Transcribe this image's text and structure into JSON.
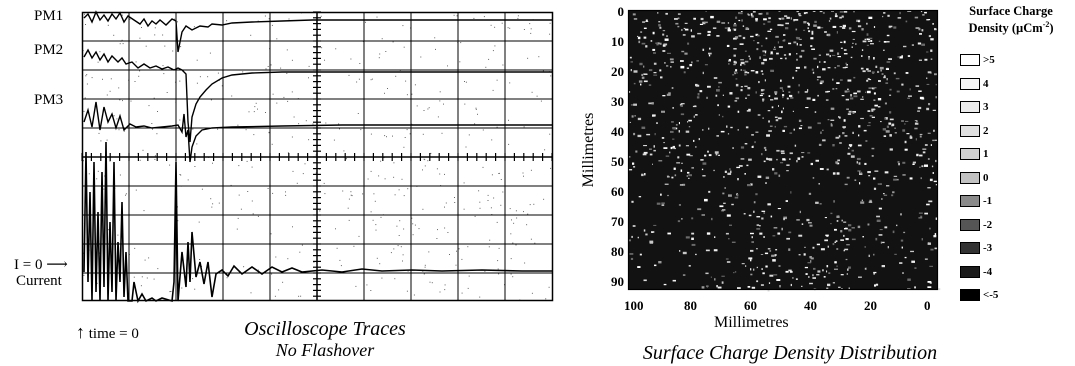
{
  "oscilloscope": {
    "trace_labels": [
      "PM1",
      "PM2",
      "PM3"
    ],
    "zero_marker": "I = 0",
    "current_label": "Current",
    "time_marker": "time = 0",
    "caption_line1": "Oscilloscope Traces",
    "caption_line2": "No Flashover"
  },
  "surface_map": {
    "y_axis_label": "Millimetres",
    "x_axis_label": "Millimetres",
    "y_ticks": [
      "0",
      "10",
      "20",
      "30",
      "40",
      "50",
      "60",
      "70",
      "80",
      "90"
    ],
    "x_ticks": [
      "100",
      "80",
      "60",
      "40",
      "20",
      "0"
    ],
    "caption": "Surface Charge Density Distribution",
    "legend_title_line1": "Surface Charge",
    "legend_title_line2": "Density (µCm",
    "legend_title_sup": "-2",
    "legend_title_close": ")",
    "legend": [
      {
        "label": ">5",
        "color": "#ffffff"
      },
      {
        "label": "4",
        "color": "#f6f6f6"
      },
      {
        "label": "3",
        "color": "#ececec"
      },
      {
        "label": "2",
        "color": "#e0e0e0"
      },
      {
        "label": "1",
        "color": "#d2d2d2"
      },
      {
        "label": "0",
        "color": "#c2c2c2"
      },
      {
        "label": "-1",
        "color": "#8a8a8a"
      },
      {
        "label": "-2",
        "color": "#555555"
      },
      {
        "label": "-3",
        "color": "#333333"
      },
      {
        "label": "-4",
        "color": "#1a1a1a"
      },
      {
        "label": "<-5",
        "color": "#000000"
      }
    ]
  }
}
